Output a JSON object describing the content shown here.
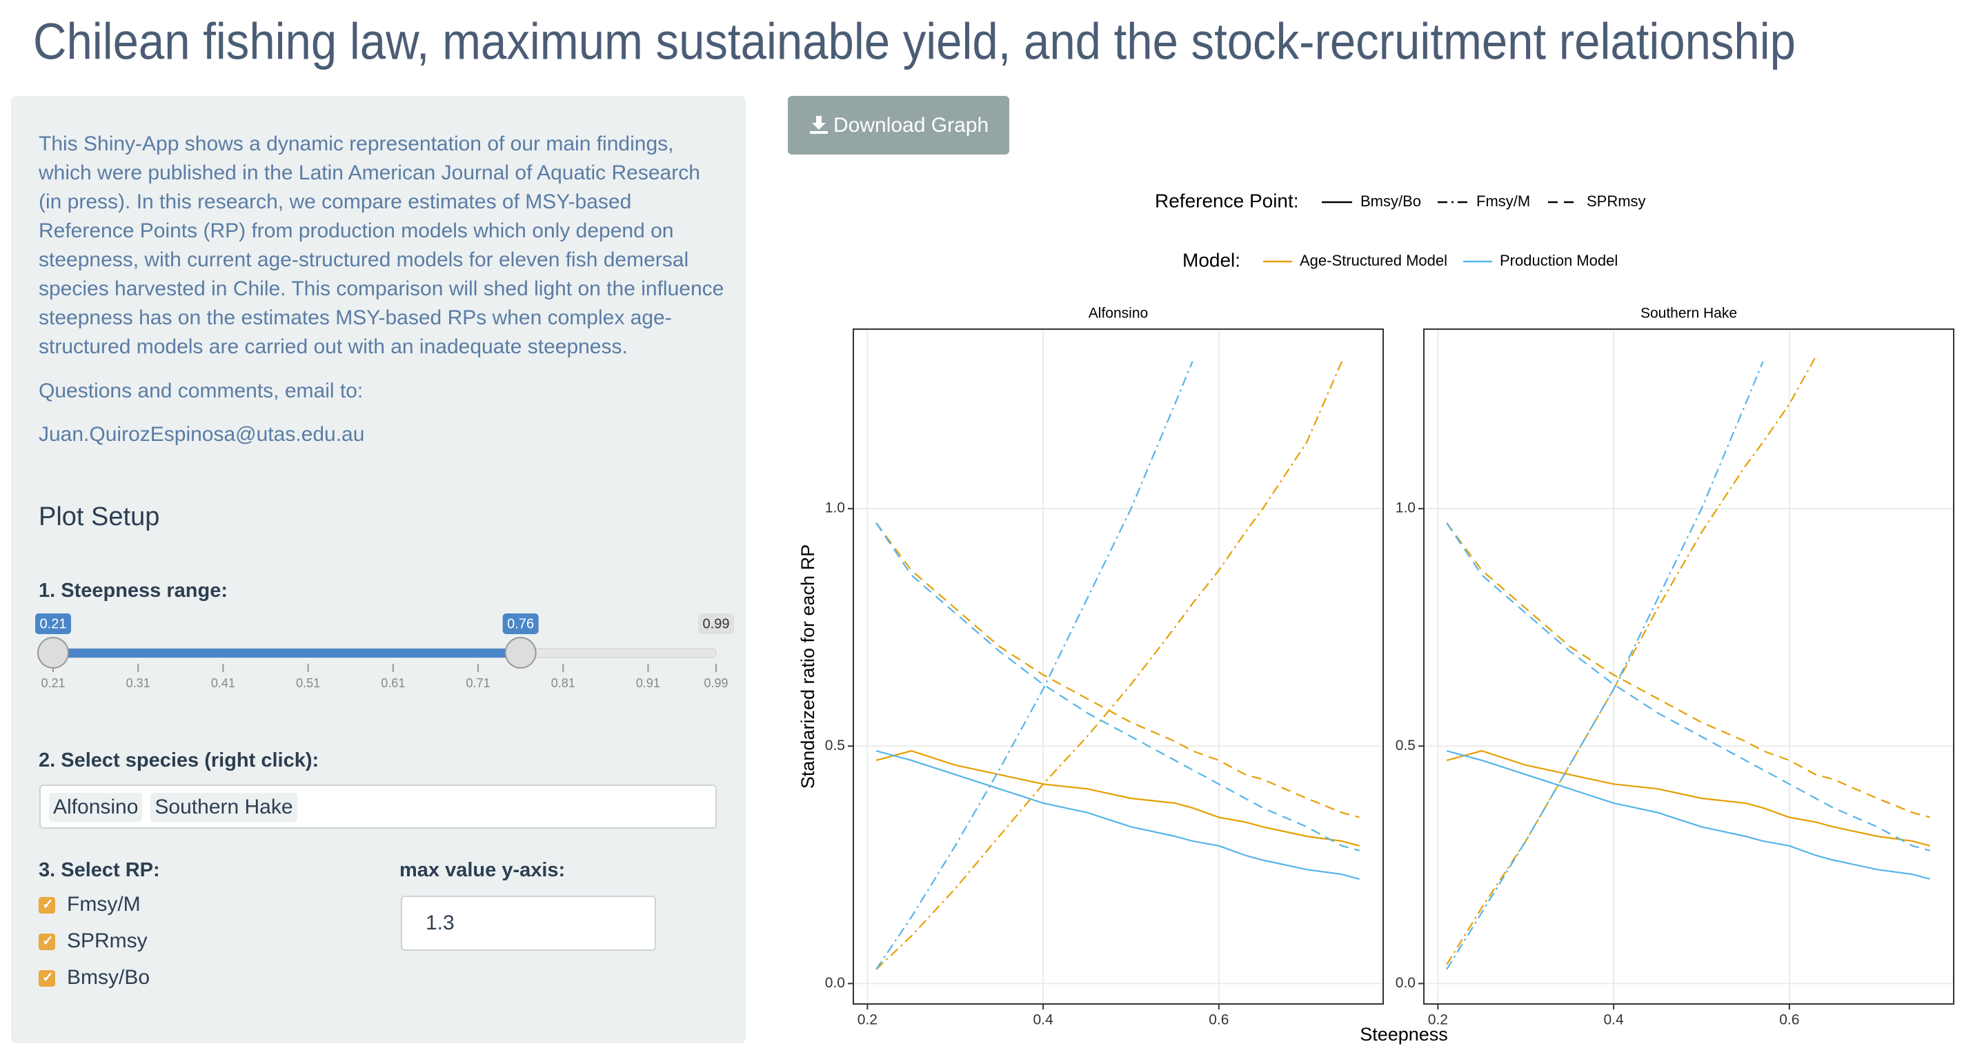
{
  "header": {
    "title": "Chilean fishing law, maximum sustainable yield, and the stock-recruitment relationship"
  },
  "sidebar": {
    "paragraphs": [
      "This Shiny-App shows a dynamic representation of our main findings, which were published in the Latin American Journal of Aquatic Research (in press). In this research, we compare estimates of MSY-based Reference Points (RP) from production models which only depend on steepness, with current age-structured models for eleven fish demersal species harvested in Chile. This comparison will shed light on the influence steepness has on the estimates MSY-based RPs when complex age-structured models are carried out with an inadequate steepness.",
      "Questions and comments, email to:",
      "Juan.QuirozEspinosa@utas.edu.au"
    ],
    "setup_title": "Plot Setup",
    "slider": {
      "label": "1. Steepness range:",
      "min": 0.21,
      "max": 0.99,
      "from": 0.21,
      "to": 0.76,
      "ticks": [
        0.21,
        0.31,
        0.41,
        0.51,
        0.61,
        0.71,
        0.81,
        0.91,
        0.99
      ]
    },
    "species": {
      "label": "2. Select species (right click):",
      "selected": [
        "Alfonsino",
        "Southern Hake"
      ]
    },
    "rp": {
      "label": "3. Select RP:",
      "options": [
        {
          "label": "Fmsy/M",
          "checked": true
        },
        {
          "label": "SPRmsy",
          "checked": true
        },
        {
          "label": "Bmsy/Bo",
          "checked": true
        }
      ]
    },
    "ymax": {
      "label": "max value y-axis:",
      "value": 1.3
    }
  },
  "toolbar": {
    "download": "Download Graph"
  },
  "chart_data": {
    "type": "line",
    "xlabel": "Steepness",
    "ylabel": "Standarized ratio for each RP",
    "grid": true,
    "xlim": [
      0.184,
      0.787
    ],
    "ylim": [
      -0.043,
      1.378
    ],
    "xticks": [
      0.2,
      0.4,
      0.6
    ],
    "yticks": [
      {
        "value": 0,
        "label": "0.0"
      },
      {
        "value": 0.5,
        "label": "0.5"
      },
      {
        "value": 1,
        "label": "1.0"
      }
    ],
    "legend": {
      "rp_title": "Reference Point:",
      "rp": [
        {
          "name": "Bmsy/Bo",
          "linetype": "solid"
        },
        {
          "name": "Fmsy/M",
          "linetype": "dashdot"
        },
        {
          "name": "SPRmsy",
          "linetype": "dashed"
        }
      ],
      "model_title": "Model:",
      "models": [
        {
          "name": "Age-Structured Model",
          "color": "#E69F00"
        },
        {
          "name": "Production Model",
          "color": "#56B4E9"
        }
      ]
    },
    "x": [
      0.21,
      0.25,
      0.3,
      0.35,
      0.4,
      0.45,
      0.5,
      0.55,
      0.57,
      0.6,
      0.63,
      0.65,
      0.7,
      0.74,
      0.76
    ],
    "panels": [
      {
        "title": "Alfonsino",
        "series": [
          {
            "color": "#E69F00",
            "linetype": "solid",
            "values": [
              0.47,
              0.49,
              0.46,
              0.44,
              0.42,
              0.41,
              0.39,
              0.38,
              0.37,
              0.35,
              0.34,
              0.33,
              0.31,
              0.3,
              0.29
            ]
          },
          {
            "color": "#56B4E9",
            "linetype": "solid",
            "values": [
              0.49,
              0.47,
              0.44,
              0.41,
              0.38,
              0.36,
              0.33,
              0.31,
              0.3,
              0.29,
              0.27,
              0.26,
              0.24,
              0.23,
              0.22
            ]
          },
          {
            "color": "#E69F00",
            "linetype": "dashdot",
            "values": [
              0.03,
              0.1,
              0.2,
              0.31,
              0.42,
              0.52,
              0.63,
              0.75,
              0.8,
              0.87,
              0.95,
              1.0,
              1.14,
              1.31,
              null
            ]
          },
          {
            "color": "#56B4E9",
            "linetype": "dashdot",
            "values": [
              0.03,
              0.14,
              0.29,
              0.45,
              0.62,
              0.81,
              1.0,
              1.22,
              1.31,
              null,
              null,
              null,
              null,
              null,
              null
            ]
          },
          {
            "color": "#E69F00",
            "linetype": "dashed",
            "values": [
              0.97,
              0.87,
              0.79,
              0.71,
              0.65,
              0.6,
              0.55,
              0.51,
              0.49,
              0.47,
              0.44,
              0.43,
              0.39,
              0.36,
              0.35
            ]
          },
          {
            "color": "#56B4E9",
            "linetype": "dashed",
            "values": [
              0.97,
              0.86,
              0.78,
              0.7,
              0.63,
              0.57,
              0.52,
              0.47,
              0.45,
              0.42,
              0.39,
              0.37,
              0.33,
              0.29,
              0.28
            ]
          }
        ]
      },
      {
        "title": "Southern Hake",
        "series": [
          {
            "color": "#E69F00",
            "linetype": "solid",
            "values": [
              0.47,
              0.49,
              0.46,
              0.44,
              0.42,
              0.41,
              0.39,
              0.38,
              0.37,
              0.35,
              0.34,
              0.33,
              0.31,
              0.3,
              0.29
            ]
          },
          {
            "color": "#56B4E9",
            "linetype": "solid",
            "values": [
              0.49,
              0.47,
              0.44,
              0.41,
              0.38,
              0.36,
              0.33,
              0.31,
              0.3,
              0.29,
              0.27,
              0.26,
              0.24,
              0.23,
              0.22
            ]
          },
          {
            "color": "#E69F00",
            "linetype": "dashdot",
            "values": [
              0.04,
              0.16,
              0.3,
              0.46,
              0.62,
              0.79,
              0.95,
              1.09,
              1.14,
              1.22,
              1.32,
              null,
              null,
              null,
              null
            ]
          },
          {
            "color": "#56B4E9",
            "linetype": "dashdot",
            "values": [
              0.03,
              0.15,
              0.3,
              0.46,
              0.62,
              0.81,
              1.0,
              1.22,
              1.31,
              null,
              null,
              null,
              null,
              null,
              null
            ]
          },
          {
            "color": "#E69F00",
            "linetype": "dashed",
            "values": [
              0.97,
              0.87,
              0.79,
              0.71,
              0.65,
              0.6,
              0.55,
              0.51,
              0.49,
              0.47,
              0.44,
              0.43,
              0.39,
              0.36,
              0.35
            ]
          },
          {
            "color": "#56B4E9",
            "linetype": "dashed",
            "values": [
              0.97,
              0.86,
              0.78,
              0.7,
              0.63,
              0.57,
              0.52,
              0.47,
              0.45,
              0.42,
              0.39,
              0.37,
              0.33,
              0.29,
              0.28
            ]
          }
        ]
      }
    ]
  }
}
